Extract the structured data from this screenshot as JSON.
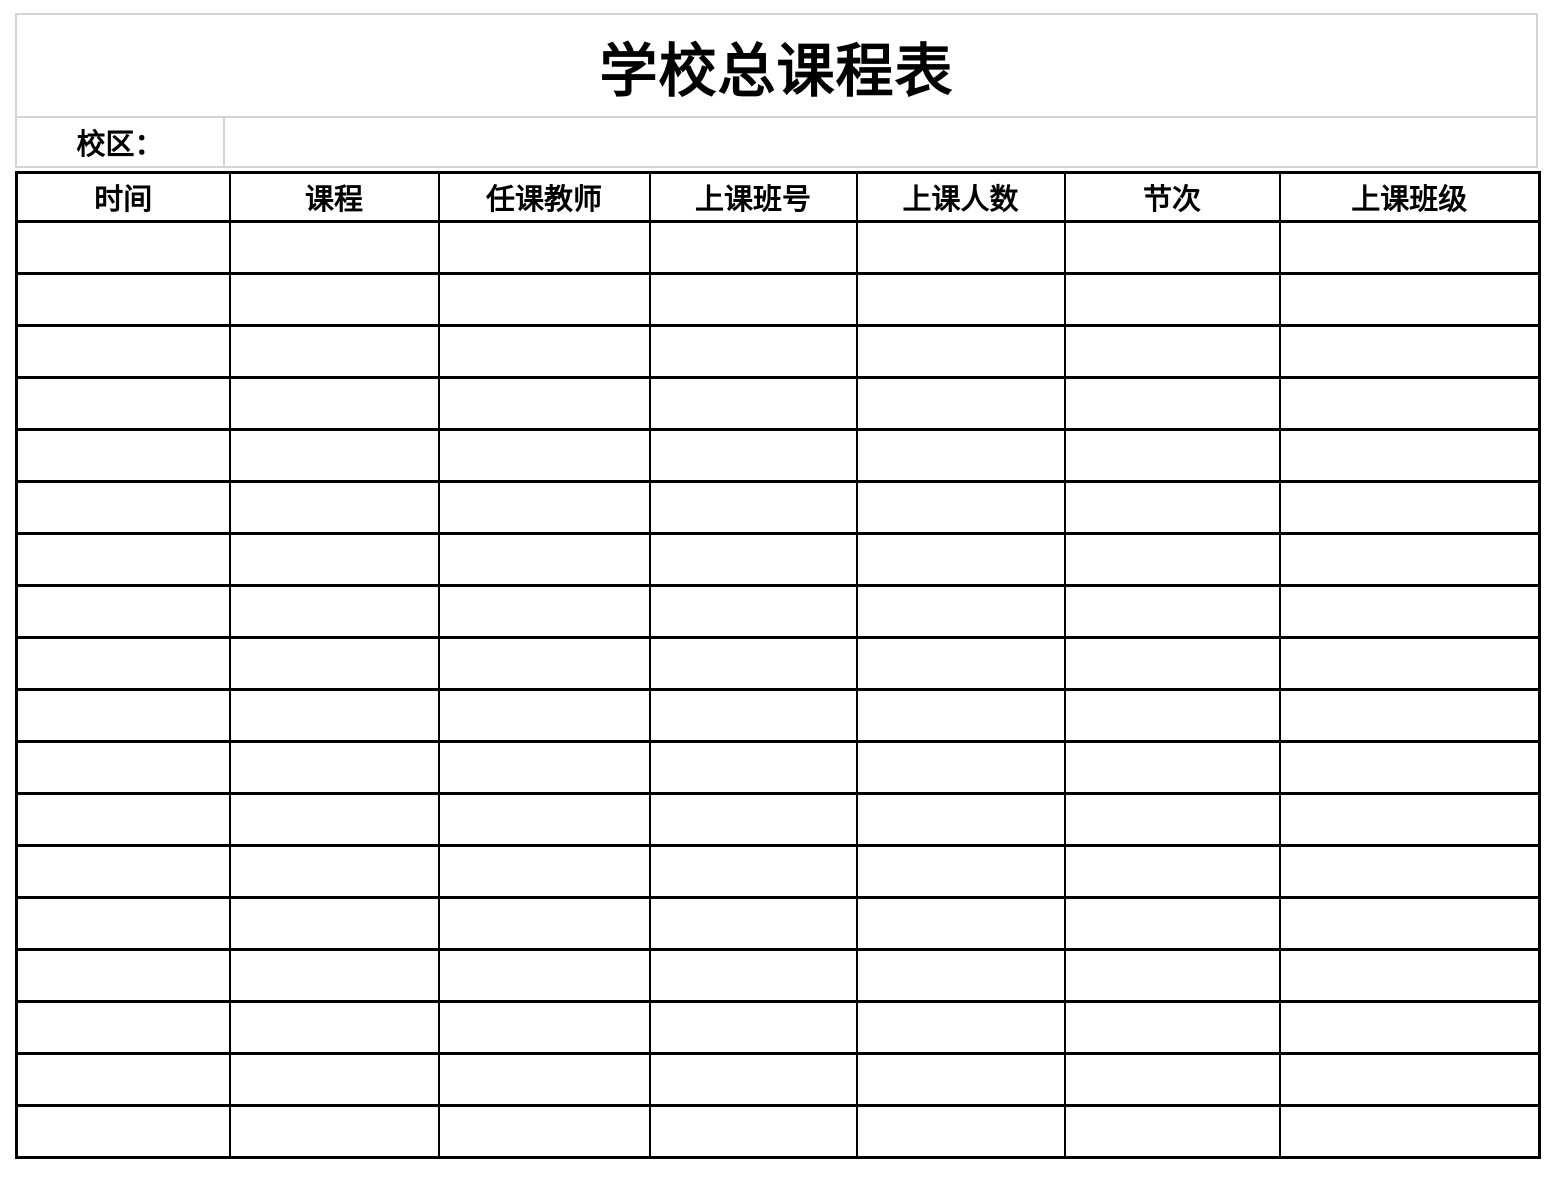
{
  "page": {
    "title": "学校总课程表"
  },
  "campus": {
    "label": "校区：",
    "value": ""
  },
  "schedule_table": {
    "headers": [
      "时间",
      "课程",
      "任课教师",
      "上课班号",
      "上课人数",
      "节次",
      "上课班级"
    ],
    "empty_row_count": 18
  },
  "colors": {
    "grid_border": "#000000",
    "frame_border": "#d4d4d4",
    "background": "#ffffff",
    "text": "#000000"
  }
}
